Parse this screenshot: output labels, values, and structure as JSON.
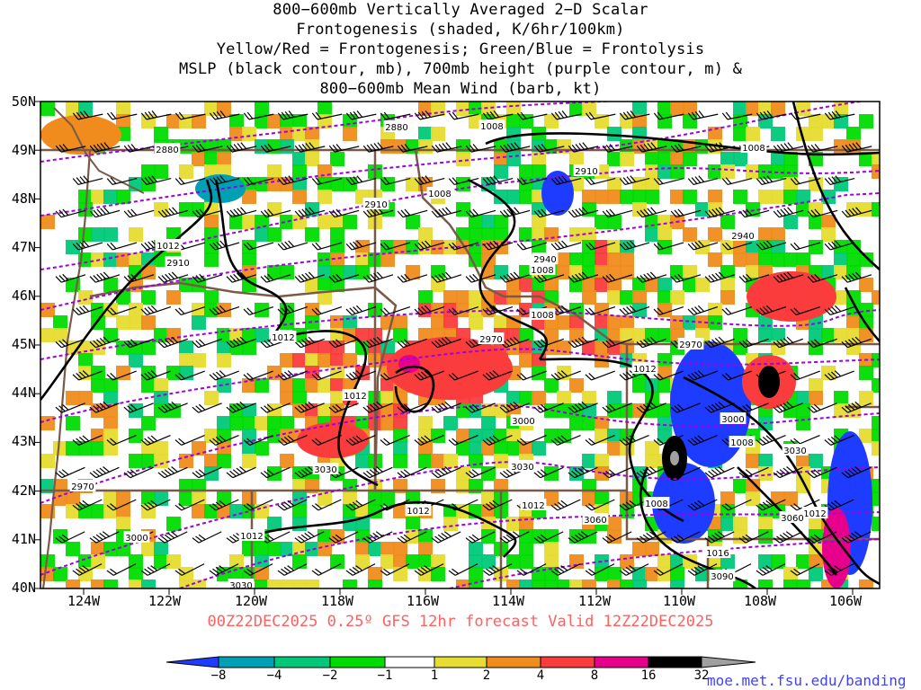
{
  "title": {
    "lines": [
      "800−600mb Vertically Averaged 2−D Scalar",
      "Frontogenesis (shaded, K/6hr/100km)",
      "Yellow/Red = Frontogenesis;  Green/Blue = Frontolysis",
      "MSLP (black contour, mb), 700mb height (purple contour, m) &",
      "800−600mb Mean Wind (barb, kt)"
    ]
  },
  "axes": {
    "lat_labels": [
      "50N",
      "49N",
      "48N",
      "47N",
      "46N",
      "45N",
      "44N",
      "43N",
      "42N",
      "41N",
      "40N"
    ],
    "lon_labels": [
      "124W",
      "122W",
      "120W",
      "118W",
      "116W",
      "114W",
      "112W",
      "110W",
      "108W",
      "106W"
    ]
  },
  "contour_labels": {
    "mslp": [
      "1008",
      "1008",
      "1008",
      "1012",
      "1012",
      "1012",
      "1012",
      "1008",
      "1012",
      "1012",
      "1008",
      "1008",
      "1012",
      "1016",
      "1012",
      "1008"
    ],
    "height": [
      "2880",
      "2880",
      "2910",
      "2910",
      "2910",
      "2940",
      "2940",
      "2970",
      "2970",
      "3000",
      "3000",
      "3030",
      "3030",
      "3000",
      "3030",
      "3060",
      "3060",
      "3090",
      "2970",
      "3030"
    ]
  },
  "valid_time": "00Z22DEC2025 0.25º GFS 12hr forecast Valid 12Z22DEC2025",
  "colorbar": {
    "ticks": [
      "−8",
      "−4",
      "−2",
      "−1",
      "1",
      "2",
      "4",
      "8",
      "16",
      "32"
    ],
    "colors": [
      "#1e3cff",
      "#00a0b4",
      "#00c878",
      "#00dc00",
      "#ffffff",
      "#e6dc32",
      "#f08c1e",
      "#fa3c3c",
      "#e6008c",
      "#000000",
      "#a0a0a0"
    ]
  },
  "credit": "moe.met.fsu.edu/banding",
  "colors": {
    "mslp_contour": "#000000",
    "height_contour": "#a000e0",
    "state_borders": "#7a5a46",
    "barbs": "#000000"
  }
}
